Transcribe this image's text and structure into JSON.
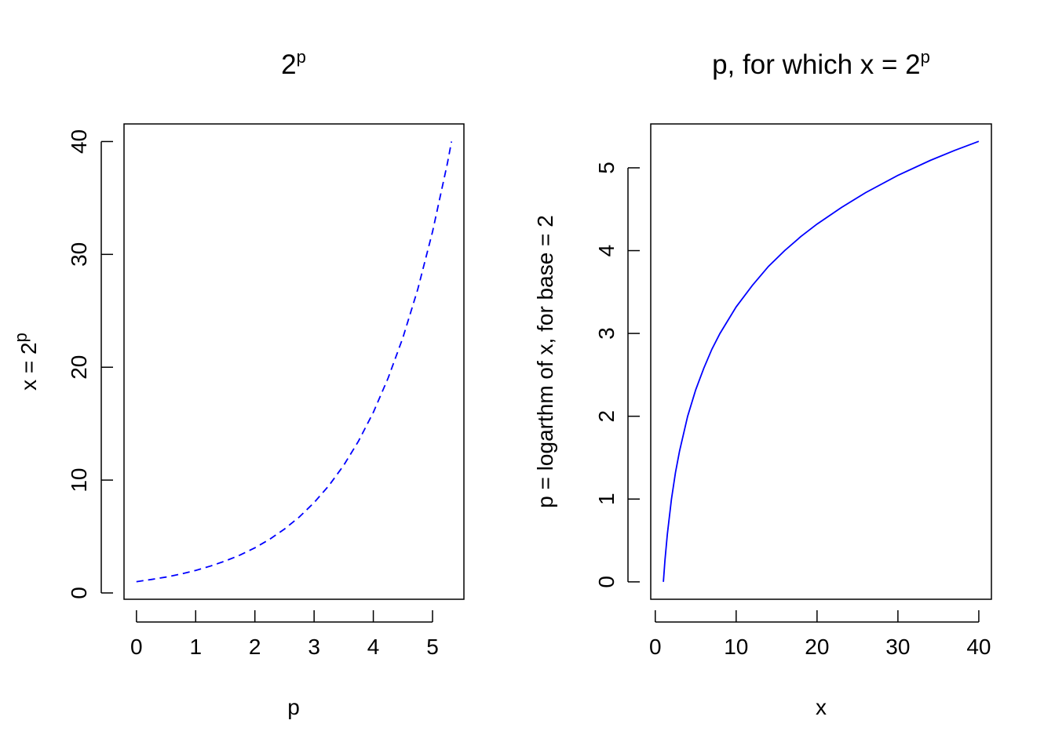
{
  "chart_data": [
    {
      "type": "line",
      "title": "2",
      "title_superscript": "p",
      "xlabel": "p",
      "ylabel": "x = 2",
      "ylabel_superscript": "p",
      "xlim": [
        -0.21,
        5.53
      ],
      "ylim": [
        -0.56,
        41.56
      ],
      "xticks": [
        "0",
        "1",
        "2",
        "3",
        "4",
        "5"
      ],
      "yticks": [
        "0",
        "10",
        "20",
        "30",
        "40"
      ],
      "line_style": "dashed",
      "grid": false,
      "series": [
        {
          "color": "#0000ff",
          "x": [
            0,
            0.25,
            0.5,
            0.75,
            1,
            1.25,
            1.5,
            1.75,
            2,
            2.25,
            2.5,
            2.75,
            3,
            3.25,
            3.5,
            3.75,
            4,
            4.25,
            4.5,
            4.75,
            5,
            5.25,
            5.32
          ],
          "y": [
            1,
            1.19,
            1.41,
            1.68,
            2,
            2.38,
            2.83,
            3.36,
            4,
            4.76,
            5.66,
            6.73,
            8,
            9.51,
            11.31,
            13.45,
            16,
            19.03,
            22.63,
            26.91,
            32,
            38.05,
            40
          ]
        }
      ]
    },
    {
      "type": "line",
      "title": "p, for which x =  2",
      "title_superscript": "p",
      "xlabel": "x",
      "ylabel": "p = logarthm of x, for base = 2",
      "xlim": [
        -0.56,
        41.56
      ],
      "ylim": [
        -0.21,
        5.53
      ],
      "xticks": [
        "0",
        "10",
        "20",
        "30",
        "40"
      ],
      "yticks": [
        "0",
        "1",
        "2",
        "3",
        "4",
        "5"
      ],
      "line_style": "solid",
      "grid": false,
      "series": [
        {
          "color": "#0000ff",
          "x": [
            1,
            1.2,
            1.5,
            2,
            2.5,
            3,
            4,
            5,
            6,
            7,
            8,
            10,
            12,
            14,
            16,
            18,
            20,
            23,
            26,
            30,
            34,
            37,
            40
          ],
          "y": [
            0,
            0.26,
            0.58,
            1,
            1.32,
            1.58,
            2,
            2.32,
            2.58,
            2.81,
            3,
            3.32,
            3.58,
            3.81,
            4,
            4.17,
            4.32,
            4.52,
            4.7,
            4.91,
            5.09,
            5.21,
            5.32
          ]
        }
      ]
    }
  ]
}
